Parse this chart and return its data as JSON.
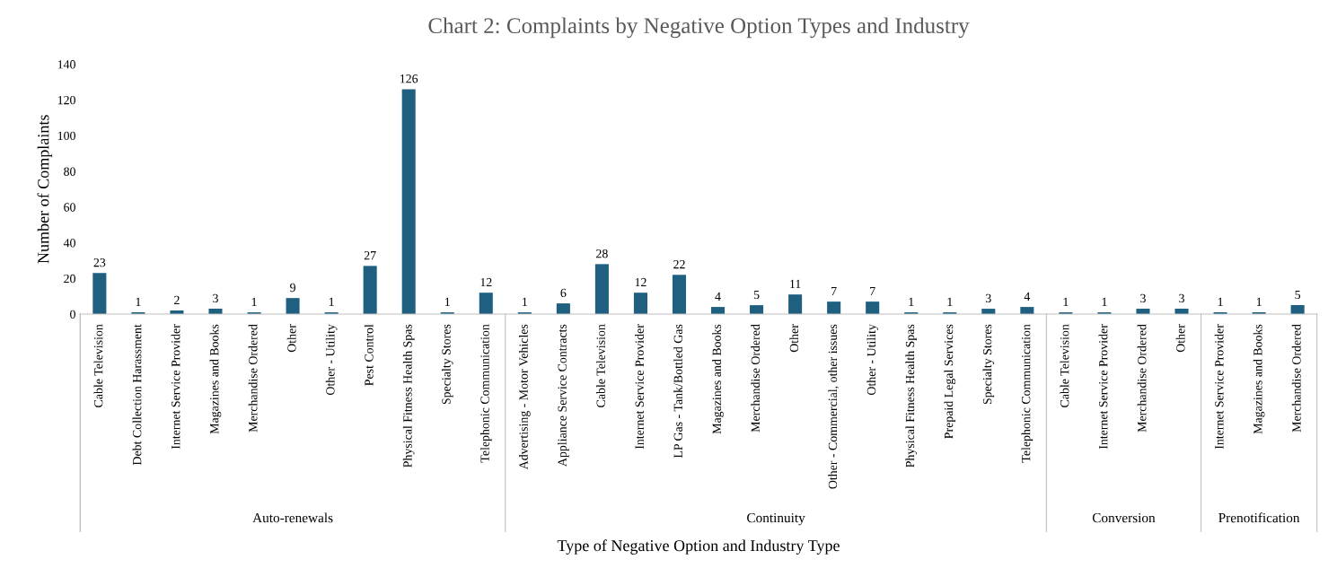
{
  "chart_data": {
    "type": "bar",
    "title": "Chart 2: Complaints by Negative Option Types and Industry",
    "xlabel": "Type of Negative Option and Industry Type",
    "ylabel": "Number of Complaints",
    "categories": [
      "Cable Television",
      "Debt Collection Harassment",
      "Internet Service Provider",
      "Magazines and Books",
      "Merchandise Ordered",
      "Other",
      "Other - Utility",
      "Pest Control",
      "Physical Fitness Health Spas",
      "Specialty Stores",
      "Telephonic Communication",
      "Advertising - Motor Vehicles",
      "Appliance Service Contracts",
      "Cable Television",
      "Internet Service Provider",
      "LP Gas - Tank/Bottled Gas",
      "Magazines and Books",
      "Merchandise Ordered",
      "Other",
      "Other - Commercial, other issues",
      "Other - Utility",
      "Physical Fitness Health Spas",
      "Prepaid Legal Services",
      "Specialty Stores",
      "Telephonic Communication",
      "Cable Television",
      "Internet Service Provider",
      "Merchandise Ordered",
      "Other",
      "Internet Service Provider",
      "Magazines and Books",
      "Merchandise Ordered"
    ],
    "values": [
      23,
      1,
      2,
      3,
      1,
      9,
      1,
      27,
      126,
      1,
      12,
      1,
      6,
      28,
      12,
      22,
      4,
      5,
      11,
      7,
      7,
      1,
      1,
      3,
      4,
      1,
      1,
      3,
      3,
      1,
      1,
      5
    ],
    "color": "#1f5f80",
    "data_labels": true,
    "ylim": [
      0,
      140
    ],
    "yticks": [
      0,
      20,
      40,
      60,
      80,
      100,
      120,
      140
    ],
    "grid": false,
    "legend": false,
    "annotations": [
      "Auto-renewals",
      "Continuity",
      "Conversion",
      "Prenotification"
    ]
  }
}
